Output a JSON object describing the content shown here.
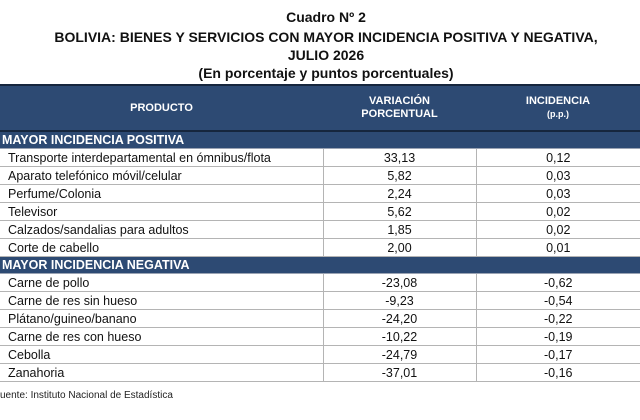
{
  "titles": {
    "line1": "Cuadro Nº 2",
    "line2": "BOLIVIA: BIENES Y SERVICIOS CON MAYOR INCIDENCIA POSITIVA Y NEGATIVA,",
    "line3": "JULIO 2026",
    "line4": "(En porcentaje y puntos porcentuales)"
  },
  "table": {
    "headers": {
      "producto": "PRODUCTO",
      "variacion_l1": "VARIACIÓN",
      "variacion_l2": "PORCENTUAL",
      "incidencia_l1": "INCIDENCIA",
      "incidencia_l2": "(p.p.)"
    },
    "positive": {
      "title": "MAYOR INCIDENCIA POSITIVA",
      "rows": [
        {
          "producto": "Transporte interdepartamental en ómnibus/flota",
          "variacion": "33,13",
          "incidencia": "0,12"
        },
        {
          "producto": "Aparato telefónico móvil/celular",
          "variacion": "5,82",
          "incidencia": "0,03"
        },
        {
          "producto": "Perfume/Colonia",
          "variacion": "2,24",
          "incidencia": "0,03"
        },
        {
          "producto": "Televisor",
          "variacion": "5,62",
          "incidencia": "0,02"
        },
        {
          "producto": "Calzados/sandalias para adultos",
          "variacion": "1,85",
          "incidencia": "0,02"
        },
        {
          "producto": "Corte de cabello",
          "variacion": "2,00",
          "incidencia": "0,01"
        }
      ]
    },
    "negative": {
      "title": "MAYOR INCIDENCIA NEGATIVA",
      "rows": [
        {
          "producto": "Carne de pollo",
          "variacion": "-23,08",
          "incidencia": "-0,62"
        },
        {
          "producto": "Carne de res sin hueso",
          "variacion": "-9,23",
          "incidencia": "-0,54"
        },
        {
          "producto": "Plátano/guineo/banano",
          "variacion": "-24,20",
          "incidencia": "-0,22"
        },
        {
          "producto": "Carne de res con hueso",
          "variacion": "-10,22",
          "incidencia": "-0,19"
        },
        {
          "producto": "Cebolla",
          "variacion": "-24,79",
          "incidencia": "-0,17"
        },
        {
          "producto": "Zanahoria",
          "variacion": "-37,01",
          "incidencia": "-0,16"
        }
      ]
    }
  },
  "footer": {
    "source": "uente: Instituto Nacional de Estadística"
  }
}
